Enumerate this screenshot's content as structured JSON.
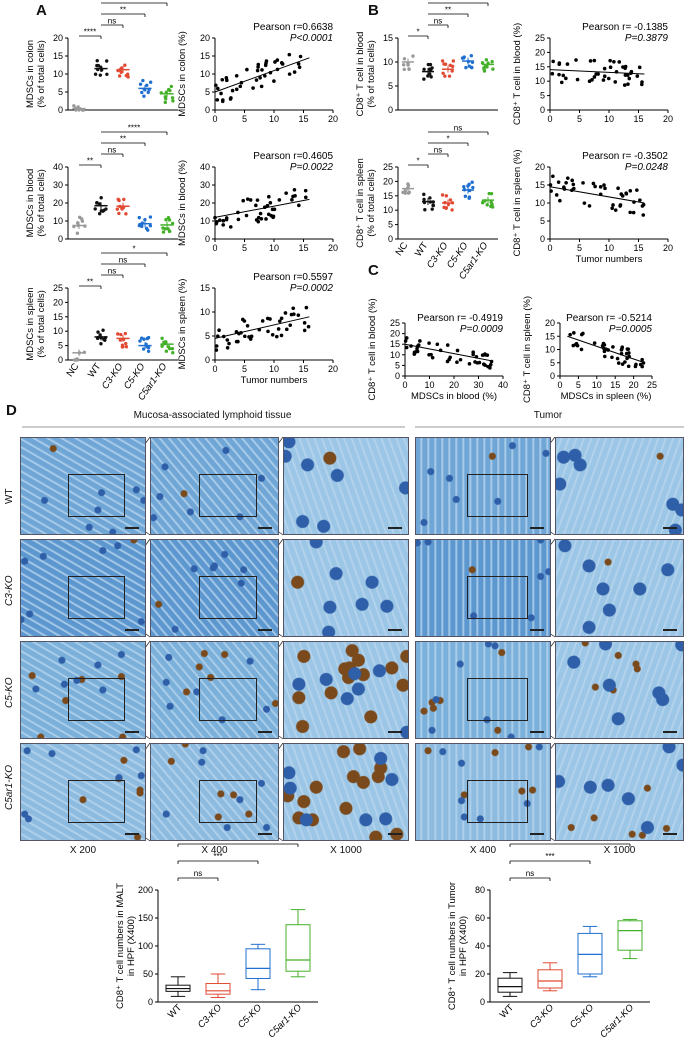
{
  "panel_letters": {
    "a": "A",
    "b": "B",
    "c": "C",
    "d": "D"
  },
  "groups": [
    "NC",
    "WT",
    "C3-KO",
    "C5-KO",
    "C5ar1-KO"
  ],
  "group_colors": [
    "#999999",
    "#111111",
    "#e24a33",
    "#1f6fd0",
    "#44b02a"
  ],
  "chart_data": [
    {
      "id": "A1",
      "type": "scatter",
      "ylabel": [
        "MDSCs in colon",
        "(% of total cells)"
      ],
      "ylim": [
        0,
        20
      ],
      "yticks": [
        0,
        5,
        10,
        15,
        20
      ],
      "means": [
        0.4,
        11.5,
        11.2,
        6.0,
        4.5
      ],
      "brackets": [
        {
          "from": 0,
          "to": 1,
          "label": "****"
        },
        {
          "from": 1,
          "to": 2,
          "label": "ns"
        },
        {
          "from": 1,
          "to": 3,
          "label": "**"
        },
        {
          "from": 1,
          "to": 4,
          "label": "****"
        }
      ]
    },
    {
      "id": "A2",
      "type": "scatter",
      "ylabel": "MDSCs in colon (%)",
      "xlim": [
        0,
        20
      ],
      "ylim": [
        0,
        20
      ],
      "xticks": [
        0,
        5,
        10,
        15,
        20
      ],
      "yticks": [
        0,
        5,
        10,
        15,
        20
      ],
      "annotation": [
        "Pearson r=0.6638",
        "P<0.0001"
      ],
      "fit": [
        [
          0,
          5
        ],
        [
          16,
          14.5
        ]
      ]
    },
    {
      "id": "A3",
      "type": "scatter",
      "ylabel": [
        "MDSCs in blood",
        "(% of total cells)"
      ],
      "ylim": [
        0,
        40
      ],
      "yticks": [
        0,
        10,
        20,
        30,
        40
      ],
      "means": [
        7.5,
        18.5,
        18.2,
        8.5,
        7.8
      ],
      "brackets": [
        {
          "from": 0,
          "to": 1,
          "label": "**"
        },
        {
          "from": 1,
          "to": 2,
          "label": "ns"
        },
        {
          "from": 1,
          "to": 3,
          "label": "**"
        },
        {
          "from": 1,
          "to": 4,
          "label": "****"
        }
      ]
    },
    {
      "id": "A4",
      "type": "scatter",
      "ylabel": "MDSCs in blood (%)",
      "xlim": [
        0,
        20
      ],
      "ylim": [
        0,
        40
      ],
      "xticks": [
        0,
        5,
        10,
        15,
        20
      ],
      "yticks": [
        0,
        10,
        20,
        30,
        40
      ],
      "annotation": [
        "Pearson r=0.4605",
        "P=0.0022"
      ],
      "fit": [
        [
          0,
          12
        ],
        [
          16,
          22
        ]
      ]
    },
    {
      "id": "A5",
      "type": "scatter",
      "ylabel": [
        "MDSCs in spleen",
        "(% of total cells)"
      ],
      "ylim": [
        0,
        25
      ],
      "yticks": [
        0,
        5,
        10,
        15,
        20,
        25
      ],
      "means": [
        2.5,
        8.0,
        7.5,
        5.0,
        5.5
      ],
      "brackets": [
        {
          "from": 0,
          "to": 1,
          "label": "**"
        },
        {
          "from": 1,
          "to": 2,
          "label": "ns"
        },
        {
          "from": 1,
          "to": 3,
          "label": "ns"
        },
        {
          "from": 1,
          "to": 4,
          "label": "*"
        }
      ]
    },
    {
      "id": "A6",
      "type": "scatter",
      "ylabel": "MDSCs in spleen (%)",
      "xlabel": "Tumor numbers",
      "xlim": [
        0,
        20
      ],
      "ylim": [
        0,
        15
      ],
      "xticks": [
        0,
        5,
        10,
        15,
        20
      ],
      "yticks": [
        0,
        5,
        10,
        15
      ],
      "annotation": [
        "Pearson r=0.5597",
        "P=0.0002"
      ],
      "fit": [
        [
          0,
          4.5
        ],
        [
          16,
          9
        ]
      ]
    },
    {
      "id": "B1",
      "type": "scatter",
      "ylabel": [
        "CD8⁺ T cell in blood",
        "(% of total cells)"
      ],
      "ylim": [
        0,
        15
      ],
      "yticks": [
        0,
        5,
        10,
        15
      ],
      "means": [
        10.0,
        8.0,
        8.5,
        10.2,
        9.5
      ],
      "brackets": [
        {
          "from": 0,
          "to": 1,
          "label": "*"
        },
        {
          "from": 1,
          "to": 2,
          "label": "ns"
        },
        {
          "from": 1,
          "to": 3,
          "label": "**"
        },
        {
          "from": 1,
          "to": 4,
          "label": "*"
        }
      ]
    },
    {
      "id": "B2",
      "type": "scatter",
      "ylabel": "CD8⁺ T cell in blood (%)",
      "xlim": [
        0,
        20
      ],
      "ylim": [
        0,
        25
      ],
      "xticks": [
        0,
        5,
        10,
        15,
        20
      ],
      "yticks": [
        0,
        5,
        10,
        15,
        20,
        25
      ],
      "annotation": [
        "Pearson r= -0.1385",
        "P=0.3879"
      ],
      "fit": [
        [
          0,
          14
        ],
        [
          16,
          12.5
        ]
      ]
    },
    {
      "id": "B3",
      "type": "scatter",
      "ylabel": [
        "CD8⁺ T cell in spleen",
        "(% of total cells)"
      ],
      "ylim": [
        0,
        25
      ],
      "yticks": [
        0,
        5,
        10,
        15,
        20,
        25
      ],
      "means": [
        17.5,
        13.0,
        12.5,
        17.0,
        13.5
      ],
      "brackets": [
        {
          "from": 0,
          "to": 1,
          "label": "*"
        },
        {
          "from": 1,
          "to": 2,
          "label": "ns"
        },
        {
          "from": 1,
          "to": 3,
          "label": "*"
        },
        {
          "from": 1,
          "to": 4,
          "label": "ns"
        }
      ]
    },
    {
      "id": "B4",
      "type": "scatter",
      "ylabel": "CD8⁺ T cell in spleen (%)",
      "xlabel": "Tumor numbers",
      "xlim": [
        0,
        20
      ],
      "ylim": [
        0,
        20
      ],
      "xticks": [
        0,
        5,
        10,
        15,
        20
      ],
      "yticks": [
        0,
        5,
        10,
        15,
        20
      ],
      "annotation": [
        "Pearson r= -0.3502",
        "P=0.0248"
      ],
      "fit": [
        [
          0,
          14.5
        ],
        [
          16,
          10
        ]
      ]
    },
    {
      "id": "C1",
      "type": "scatter",
      "ylabel": "CD8⁺ T cell in blood (%)",
      "xlabel": "MDSCs in blood (%)",
      "xlim": [
        0,
        40
      ],
      "ylim": [
        0,
        25
      ],
      "xticks": [
        0,
        10,
        20,
        30,
        40
      ],
      "yticks": [
        0,
        5,
        10,
        15,
        20,
        25
      ],
      "annotation": [
        "Pearson r= -0.4919",
        "P=0.0009"
      ],
      "fit": [
        [
          0,
          15
        ],
        [
          36,
          7
        ]
      ]
    },
    {
      "id": "C2",
      "type": "scatter",
      "ylabel": "CD8⁺ T cell in spleen (%)",
      "xlabel": "MDSCs in spleen (%)",
      "xlim": [
        0,
        25
      ],
      "ylim": [
        0,
        20
      ],
      "xticks": [
        0,
        5,
        10,
        15,
        20,
        25
      ],
      "yticks": [
        0,
        5,
        10,
        15,
        20
      ],
      "annotation": [
        "Pearson r= -0.5214",
        "P=0.0005"
      ],
      "fit": [
        [
          2,
          15
        ],
        [
          23,
          5
        ]
      ]
    },
    {
      "id": "D1",
      "type": "box",
      "ylabel": [
        "CD8⁺ T cell numbers in MALT",
        "in HPF (X400)"
      ],
      "ylim": [
        0,
        200
      ],
      "yticks": [
        0,
        50,
        100,
        150,
        200
      ],
      "categories": [
        "WT",
        "C3-KO",
        "C5-KO",
        "C5ar1-KO"
      ],
      "boxes": [
        {
          "min": 10,
          "q1": 19,
          "median": 24,
          "q3": 30,
          "max": 45
        },
        {
          "min": 8,
          "q1": 14,
          "median": 20,
          "q3": 33,
          "max": 50
        },
        {
          "min": 22,
          "q1": 42,
          "median": 60,
          "q3": 95,
          "max": 103
        },
        {
          "min": 45,
          "q1": 55,
          "median": 75,
          "q3": 138,
          "max": 165
        }
      ],
      "brackets": [
        {
          "from": 0,
          "to": 1,
          "label": "ns"
        },
        {
          "from": 0,
          "to": 2,
          "label": "***"
        },
        {
          "from": 0,
          "to": 3,
          "label": "***"
        }
      ]
    },
    {
      "id": "D2",
      "type": "box",
      "ylabel": [
        "CD8⁺ T cell numbers in Tumor",
        "in HPF (X400)"
      ],
      "ylim": [
        0,
        80
      ],
      "yticks": [
        0,
        20,
        40,
        60,
        80
      ],
      "categories": [
        "WT",
        "C3-KO",
        "C5-KO",
        "C5ar1-KO"
      ],
      "boxes": [
        {
          "min": 4,
          "q1": 7,
          "median": 11,
          "q3": 17,
          "max": 21
        },
        {
          "min": 8,
          "q1": 10,
          "median": 15,
          "q3": 23,
          "max": 28
        },
        {
          "min": 18,
          "q1": 20,
          "median": 34,
          "q3": 49,
          "max": 54
        },
        {
          "min": 31,
          "q1": 37,
          "median": 51,
          "q3": 58,
          "max": 59
        }
      ],
      "brackets": [
        {
          "from": 0,
          "to": 1,
          "label": "ns"
        },
        {
          "from": 0,
          "to": 2,
          "label": "***"
        },
        {
          "from": 0,
          "to": 3,
          "label": "****"
        }
      ]
    }
  ],
  "panel_d": {
    "section_malt": "Mucosa-associated lymphoid tissue",
    "section_tumor": "Tumor",
    "rows": [
      "WT",
      "C3-KO",
      "C5-KO",
      "C5ar1-KO"
    ],
    "cols": [
      "X 200",
      "X 400",
      "X 1000",
      "X 400",
      "X 1000"
    ]
  }
}
